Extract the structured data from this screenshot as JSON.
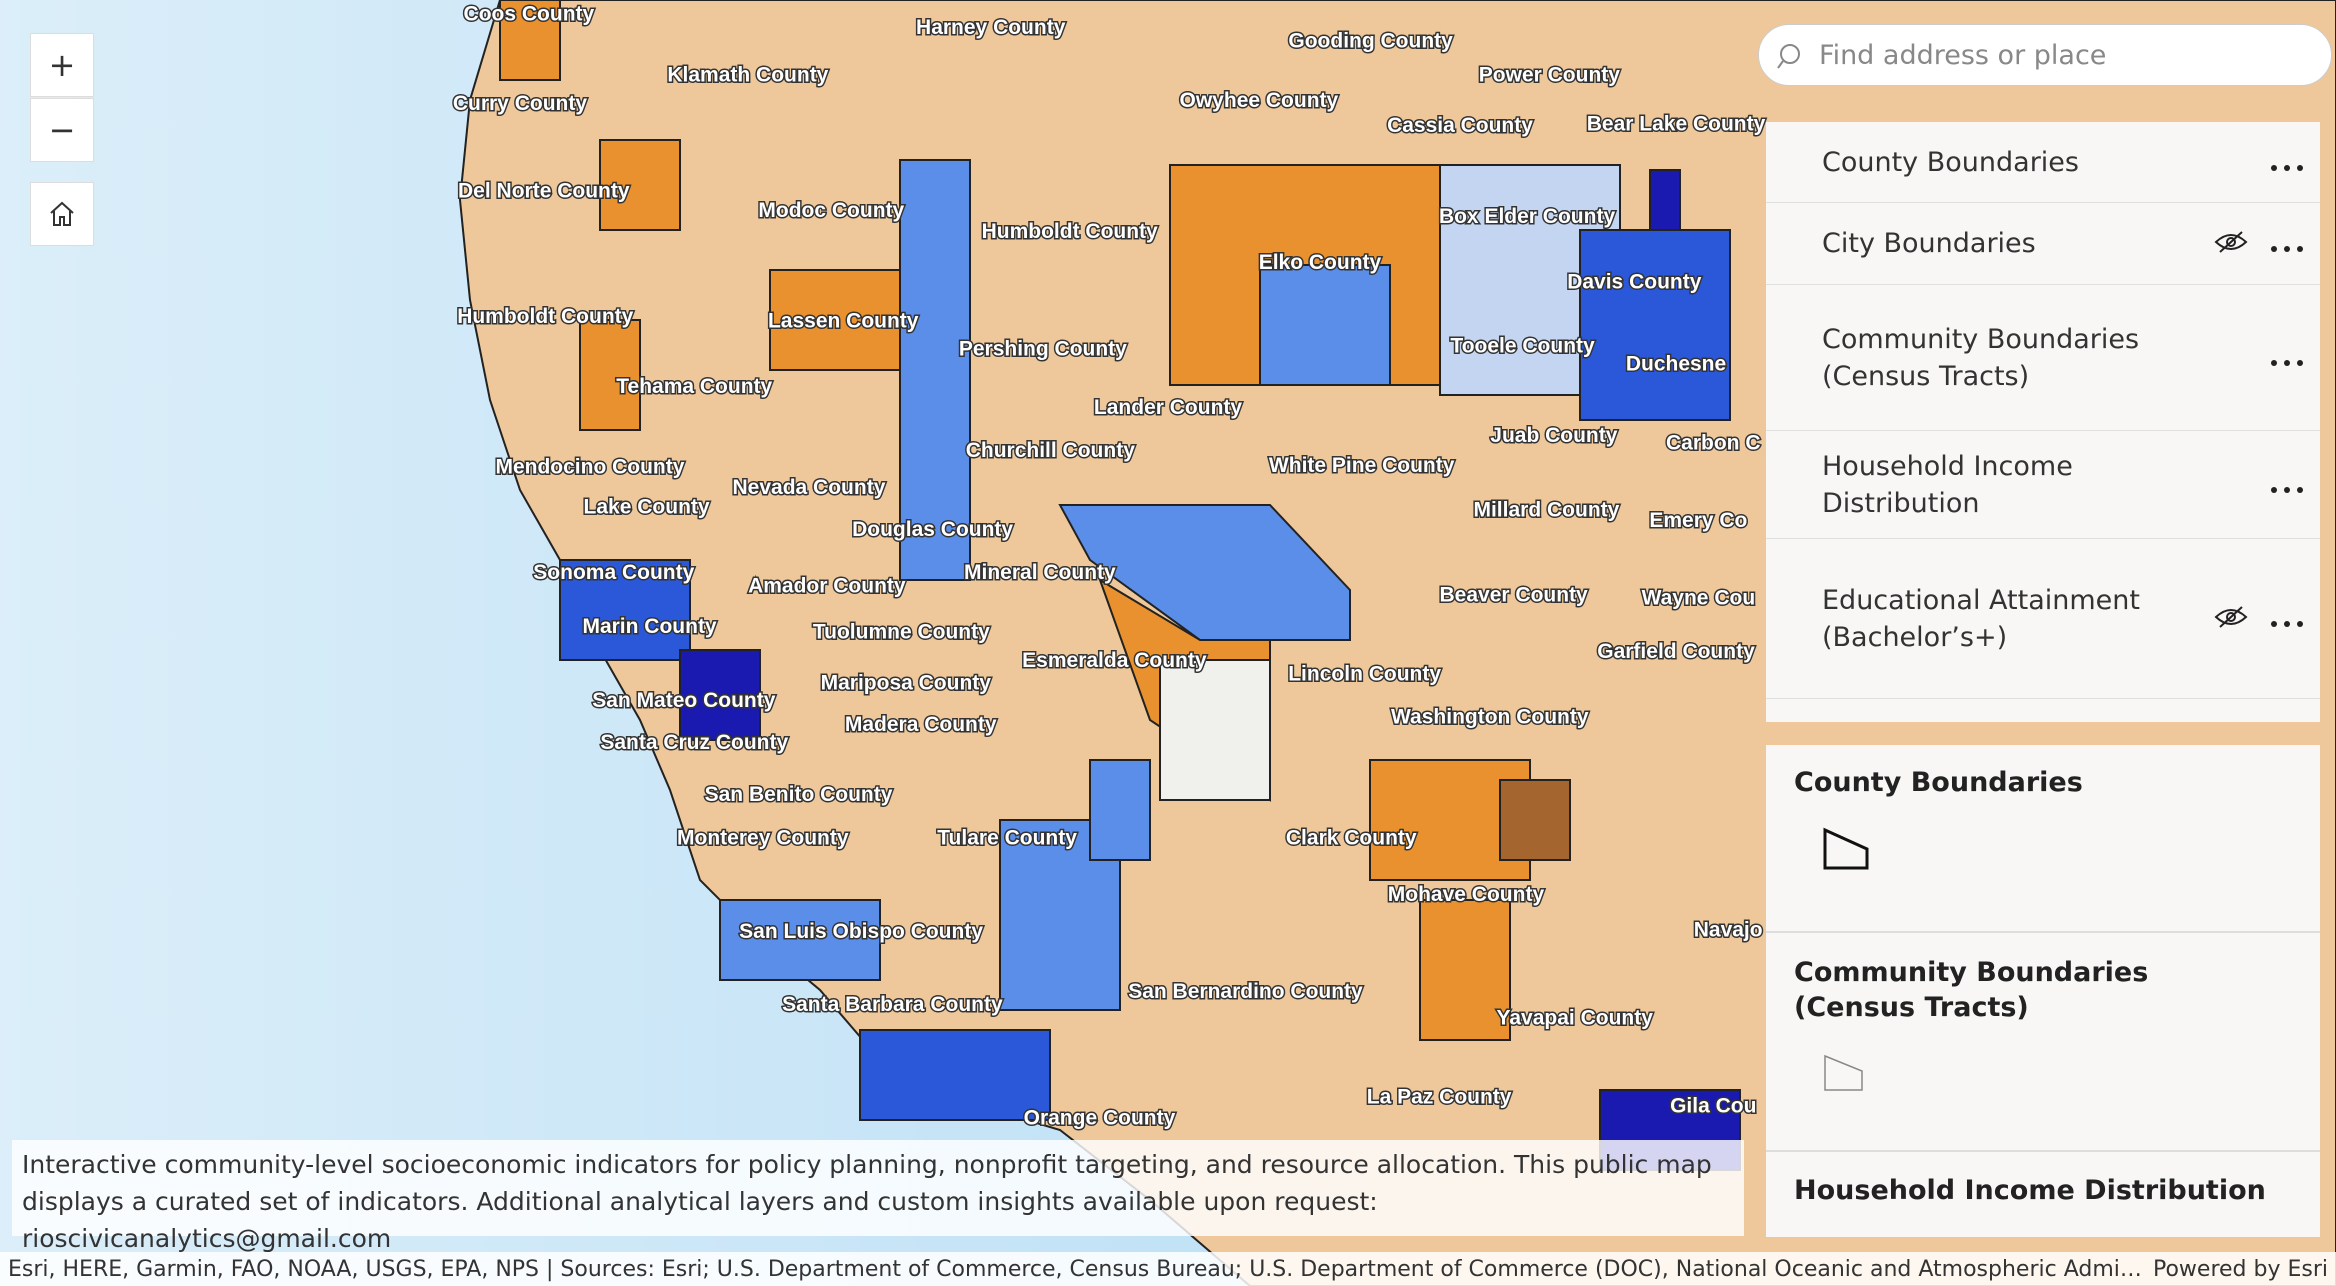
{
  "map_controls": {
    "zoom_in": "+",
    "zoom_out": "−"
  },
  "search": {
    "placeholder": "Find address or place"
  },
  "layer_list": [
    {
      "title": "County Boundaries"
    },
    {
      "title": "City Boundaries"
    },
    {
      "title": "Community Boundaries (Census Tracts)"
    },
    {
      "title": "Household Income Distribution"
    },
    {
      "title": "Educational Attainment (Bachelor’s+)"
    }
  ],
  "legend": [
    {
      "title": "County Boundaries"
    },
    {
      "title": "Community Boundaries (Census Tracts)"
    },
    {
      "title": "Household Income Distribution"
    }
  ],
  "description": "Interactive community-level socioeconomic indicators for policy planning, nonprofit targeting, and resource allocation. This public map displays a curated set of indicators. Additional analytical layers and custom insights available upon request: rioscivicanalytics@gmail.com",
  "attribution": "Esri, HERE, Garmin, FAO, NOAA, USGS, EPA, NPS | Sources: Esri; U.S. Department of Commerce, Census Bureau; U.S. Department of Commerce (DOC), National Oceanic and Atmospheric Administration",
  "powered_by": "Powered by Esri",
  "map_labels": [
    "Coos County",
    "Harney County",
    "Gooding County",
    "Klamath County",
    "Power County",
    "Curry County",
    "Owyhee County",
    "Cassia County",
    "Bear Lake County",
    "Del Norte County",
    "Modoc County",
    "Humboldt County",
    "Box Elder County",
    "Elko County",
    "Davis County",
    "Humboldt County",
    "Lassen County",
    "Pershing County",
    "Tooele County",
    "Duchesne",
    "Tehama County",
    "Lander County",
    "Juab County",
    "Carbon C",
    "Churchill County",
    "Mendocino County",
    "White Pine County",
    "Nevada County",
    "Lake County",
    "Millard County",
    "Emery Co",
    "Douglas County",
    "Sonoma County",
    "Mineral County",
    "Amador County",
    "Beaver County",
    "Wayne Cou",
    "Marin County",
    "Tuolumne County",
    "Garfield County",
    "Esmeralda County",
    "Lincoln County",
    "Mariposa County",
    "San Mateo County",
    "Washington County",
    "Madera County",
    "Santa Cruz County",
    "San Benito County",
    "Clark County",
    "Monterey County",
    "Tulare County",
    "Mohave County",
    "Navajo",
    "San Luis Obispo County",
    "San Bernardino County",
    "Santa Barbara County",
    "Yavapai County",
    "La Paz County",
    "Orange County",
    "Gila Cou"
  ]
}
